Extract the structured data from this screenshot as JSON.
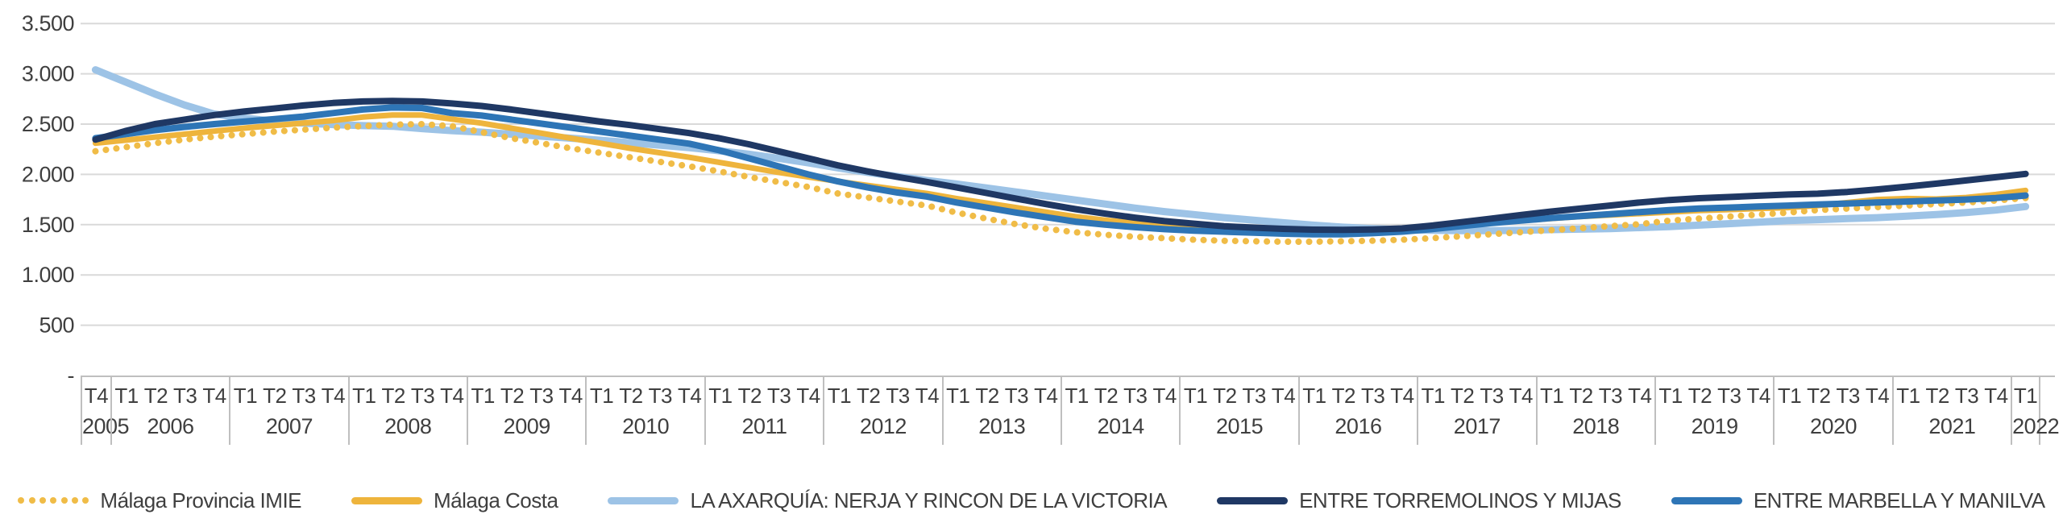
{
  "chart_data": {
    "type": "line",
    "title": "",
    "grid": "horizontal",
    "legend_position": "bottom",
    "colors": {
      "gridline": "#d9d9d9",
      "axis_border": "#bfbfbf",
      "text": "#3f3f3f"
    },
    "y_axis": {
      "min": 0,
      "max": 3500,
      "step": 500,
      "ticks": [
        {
          "value": 3500,
          "label": "3.500"
        },
        {
          "value": 3000,
          "label": "3.000"
        },
        {
          "value": 2500,
          "label": "2.500"
        },
        {
          "value": 2000,
          "label": "2.000"
        },
        {
          "value": 1500,
          "label": "1.500"
        },
        {
          "value": 1000,
          "label": "1.000"
        },
        {
          "value": 500,
          "label": "500"
        },
        {
          "value": 0,
          "label": "-"
        }
      ]
    },
    "x_axis": {
      "year_groups": [
        {
          "year": "2005",
          "quarters": [
            "T4"
          ]
        },
        {
          "year": "2006",
          "quarters": [
            "T1",
            "T2",
            "T3",
            "T4"
          ]
        },
        {
          "year": "2007",
          "quarters": [
            "T1",
            "T2",
            "T3",
            "T4"
          ]
        },
        {
          "year": "2008",
          "quarters": [
            "T1",
            "T2",
            "T3",
            "T4"
          ]
        },
        {
          "year": "2009",
          "quarters": [
            "T1",
            "T2",
            "T3",
            "T4"
          ]
        },
        {
          "year": "2010",
          "quarters": [
            "T1",
            "T2",
            "T3",
            "T4"
          ]
        },
        {
          "year": "2011",
          "quarters": [
            "T1",
            "T2",
            "T3",
            "T4"
          ]
        },
        {
          "year": "2012",
          "quarters": [
            "T1",
            "T2",
            "T3",
            "T4"
          ]
        },
        {
          "year": "2013",
          "quarters": [
            "T1",
            "T2",
            "T3",
            "T4"
          ]
        },
        {
          "year": "2014",
          "quarters": [
            "T1",
            "T2",
            "T3",
            "T4"
          ]
        },
        {
          "year": "2015",
          "quarters": [
            "T1",
            "T2",
            "T3",
            "T4"
          ]
        },
        {
          "year": "2016",
          "quarters": [
            "T1",
            "T2",
            "T3",
            "T4"
          ]
        },
        {
          "year": "2017",
          "quarters": [
            "T1",
            "T2",
            "T3",
            "T4"
          ]
        },
        {
          "year": "2018",
          "quarters": [
            "T1",
            "T2",
            "T3",
            "T4"
          ]
        },
        {
          "year": "2019",
          "quarters": [
            "T1",
            "T2",
            "T3",
            "T4"
          ]
        },
        {
          "year": "2020",
          "quarters": [
            "T1",
            "T2",
            "T3",
            "T4"
          ]
        },
        {
          "year": "2021",
          "quarters": [
            "T1",
            "T2",
            "T3",
            "T4"
          ]
        },
        {
          "year": "2022",
          "quarters": [
            "T1"
          ]
        }
      ]
    },
    "series": [
      {
        "name": "Málaga Provincia IMIE",
        "style": "dotted",
        "color": "#f0bc47",
        "values": [
          2230,
          2270,
          2310,
          2345,
          2375,
          2400,
          2425,
          2445,
          2465,
          2480,
          2495,
          2500,
          2480,
          2420,
          2360,
          2310,
          2260,
          2215,
          2170,
          2125,
          2080,
          2030,
          1975,
          1925,
          1875,
          1810,
          1770,
          1730,
          1690,
          1620,
          1560,
          1505,
          1460,
          1425,
          1400,
          1380,
          1365,
          1350,
          1340,
          1335,
          1330,
          1330,
          1335,
          1340,
          1350,
          1365,
          1385,
          1405,
          1425,
          1445,
          1465,
          1485,
          1505,
          1540,
          1560,
          1580,
          1600,
          1620,
          1645,
          1660,
          1675,
          1690,
          1705,
          1720,
          1740,
          1765
        ]
      },
      {
        "name": "Málaga Costa",
        "style": "solid",
        "color": "#eeb43c",
        "values": [
          2310,
          2340,
          2370,
          2400,
          2430,
          2460,
          2485,
          2510,
          2535,
          2570,
          2590,
          2590,
          2550,
          2510,
          2460,
          2410,
          2360,
          2310,
          2260,
          2215,
          2170,
          2120,
          2070,
          2020,
          1975,
          1930,
          1890,
          1850,
          1810,
          1760,
          1715,
          1670,
          1625,
          1580,
          1545,
          1515,
          1490,
          1470,
          1455,
          1445,
          1435,
          1430,
          1430,
          1435,
          1445,
          1465,
          1490,
          1515,
          1540,
          1560,
          1580,
          1595,
          1610,
          1625,
          1640,
          1650,
          1660,
          1670,
          1690,
          1720,
          1750,
          1760,
          1755,
          1770,
          1800,
          1840
        ]
      },
      {
        "name": "LA AXARQUÍA:  NERJA Y RINCON DE LA VICTORIA",
        "style": "solid",
        "color": "#9dc3e6",
        "values": [
          3040,
          2920,
          2800,
          2690,
          2600,
          2560,
          2530,
          2510,
          2495,
          2485,
          2478,
          2455,
          2435,
          2420,
          2400,
          2380,
          2360,
          2340,
          2315,
          2290,
          2265,
          2235,
          2200,
          2160,
          2115,
          2065,
          2020,
          1980,
          1940,
          1905,
          1865,
          1825,
          1785,
          1745,
          1705,
          1665,
          1630,
          1600,
          1570,
          1545,
          1520,
          1495,
          1475,
          1460,
          1450,
          1445,
          1440,
          1440,
          1445,
          1450,
          1455,
          1460,
          1470,
          1480,
          1495,
          1510,
          1525,
          1540,
          1550,
          1560,
          1570,
          1585,
          1600,
          1620,
          1645,
          1680
        ]
      },
      {
        "name": "ENTRE TORREMOLINOS Y MIJAS",
        "style": "solid",
        "color": "#1f3864",
        "values": [
          2345,
          2430,
          2500,
          2545,
          2590,
          2625,
          2655,
          2685,
          2710,
          2725,
          2730,
          2725,
          2705,
          2680,
          2645,
          2605,
          2565,
          2525,
          2490,
          2450,
          2410,
          2360,
          2300,
          2230,
          2160,
          2090,
          2030,
          1975,
          1925,
          1870,
          1815,
          1760,
          1705,
          1655,
          1610,
          1570,
          1535,
          1510,
          1485,
          1470,
          1458,
          1450,
          1448,
          1452,
          1462,
          1490,
          1525,
          1560,
          1595,
          1630,
          1660,
          1690,
          1720,
          1745,
          1763,
          1775,
          1788,
          1800,
          1808,
          1825,
          1850,
          1878,
          1908,
          1940,
          1972,
          2005
        ]
      },
      {
        "name": "ENTRE MARBELLA Y MANILVA",
        "style": "solid",
        "color": "#2e75b6",
        "values": [
          2360,
          2400,
          2440,
          2472,
          2500,
          2525,
          2550,
          2575,
          2610,
          2645,
          2665,
          2660,
          2610,
          2585,
          2545,
          2505,
          2465,
          2425,
          2385,
          2345,
          2305,
          2240,
          2160,
          2080,
          2000,
          1930,
          1870,
          1820,
          1780,
          1720,
          1670,
          1620,
          1575,
          1530,
          1500,
          1475,
          1455,
          1440,
          1430,
          1420,
          1410,
          1405,
          1405,
          1415,
          1430,
          1455,
          1485,
          1515,
          1540,
          1565,
          1585,
          1605,
          1625,
          1645,
          1660,
          1670,
          1680,
          1690,
          1700,
          1710,
          1720,
          1730,
          1740,
          1750,
          1765,
          1790
        ]
      }
    ]
  }
}
